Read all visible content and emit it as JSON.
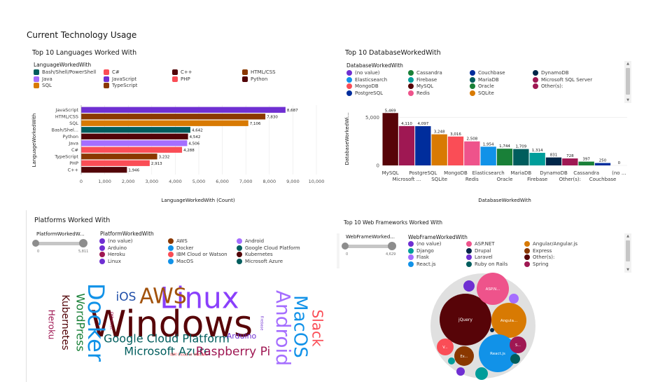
{
  "page": {
    "title": "Current Technology Usage"
  },
  "colors": {
    "purple": "#6f2fd2",
    "red": "#fa4d56",
    "maroon": "#570408",
    "brown": "#8a3800",
    "teal": "#198038",
    "cyan": "#1192e8",
    "navy": "#002d9c",
    "dark_teal": "#005d5d",
    "magenta": "#9f1853",
    "orange": "#d87a03",
    "lilac": "#a56eff",
    "pink": "#ee538b",
    "blackblue": "#012749",
    "brick": "#b28600",
    "deep_orange": "#e8830b",
    "burgundy": "#520408"
  },
  "chart_data": [
    {
      "id": "languages",
      "type": "bar",
      "orientation": "horizontal",
      "title": "Top 10 Languages Worked With",
      "legend_title": "LanguageWorkedWith",
      "xlabel": "LanguageWorkedWith (Count)",
      "ylabel": "LanguageWorkedWith",
      "xlim": [
        0,
        10000
      ],
      "xticks": [
        "0",
        "1,000",
        "2,000",
        "3,000",
        "4,000",
        "5,000",
        "6,000",
        "7,000",
        "8,000",
        "9,000",
        "10,000"
      ],
      "legend_placement": "top",
      "legend": [
        {
          "label": "Bash/Shell/PowerShell",
          "color": "#005d5d"
        },
        {
          "label": "C#",
          "color": "#fa4d56"
        },
        {
          "label": "C++",
          "color": "#520408"
        },
        {
          "label": "HTML/CSS",
          "color": "#8a3800"
        },
        {
          "label": "Java",
          "color": "#a56eff"
        },
        {
          "label": "JavaScript",
          "color": "#6f2fd2"
        },
        {
          "label": "PHP",
          "color": "#fa4d56"
        },
        {
          "label": "Python",
          "color": "#520408"
        },
        {
          "label": "SQL",
          "color": "#d87a03"
        },
        {
          "label": "TypeScript",
          "color": "#8a3800"
        }
      ],
      "categories": [
        "JavaScript",
        "HTML/CSS",
        "SQL",
        "Bash/Shel...",
        "Python",
        "Java",
        "C#",
        "TypeScript",
        "PHP",
        "C++"
      ],
      "values": [
        8687,
        7830,
        7106,
        4642,
        4542,
        4506,
        4288,
        3232,
        2913,
        1946
      ],
      "value_labels": [
        "8,687",
        "7,830",
        "7,106",
        "4,642",
        "4,542",
        "4,506",
        "4,288",
        "3,232",
        "2,913",
        "1,946"
      ],
      "bar_colors": [
        "#6f2fd2",
        "#8a3800",
        "#d87a03",
        "#005d5d",
        "#520408",
        "#a56eff",
        "#fa4d56",
        "#8a3800",
        "#fa4d56",
        "#520408"
      ]
    },
    {
      "id": "databases",
      "type": "bar",
      "orientation": "vertical",
      "title": "Top 10 DatabaseWorkedWith",
      "legend_title": "DatabaseWorkedWith",
      "xlabel": "DatabaseWorkedWith",
      "ylabel": "DatabaseWorkedWi...",
      "ylim": [
        0,
        6000
      ],
      "yticks": [
        "0",
        "5,000"
      ],
      "legend_placement": "top",
      "legend": [
        {
          "label": "(no value)",
          "color": "#6f2fd2"
        },
        {
          "label": "Cassandra",
          "color": "#198038"
        },
        {
          "label": "Couchbase",
          "color": "#002d9c"
        },
        {
          "label": "DynamoDB",
          "color": "#012749"
        },
        {
          "label": "Elasticsearch",
          "color": "#1192e8"
        },
        {
          "label": "Firebase",
          "color": "#009d9a"
        },
        {
          "label": "MariaDB",
          "color": "#005d5d"
        },
        {
          "label": "Microsoft SQL Server",
          "color": "#9f1853"
        },
        {
          "label": "MongoDB",
          "color": "#fa4d56"
        },
        {
          "label": "MySQL",
          "color": "#570408"
        },
        {
          "label": "Oracle",
          "color": "#198038"
        },
        {
          "label": "Other(s):",
          "color": "#9f1853"
        },
        {
          "label": "PostgreSQL",
          "color": "#002d9c"
        },
        {
          "label": "Redis",
          "color": "#ee538b"
        },
        {
          "label": "SQLite",
          "color": "#d87a03"
        }
      ],
      "categories": [
        "MySQL",
        "Microsoft ...",
        "PostgreSQL",
        "SQLite",
        "MongoDB",
        "Redis",
        "Elasticsearch",
        "Oracle",
        "MariaDB",
        "Firebase",
        "DynamoDB",
        "Other(s):",
        "Cassandra",
        "Couchbase",
        "(no ..."
      ],
      "values": [
        5469,
        4110,
        4097,
        3248,
        3016,
        2508,
        1954,
        1744,
        1709,
        1314,
        831,
        728,
        397,
        250,
        0
      ],
      "value_labels": [
        "5,469",
        "4,110",
        "4,097",
        "3,248",
        "3,016",
        "2,508",
        "1,954",
        "1,744",
        "1,709",
        "1,314",
        "831",
        "728",
        "397",
        "250",
        "0"
      ],
      "bar_colors": [
        "#570408",
        "#9f1853",
        "#002d9c",
        "#d87a03",
        "#fa4d56",
        "#ee538b",
        "#1192e8",
        "#198038",
        "#005d5d",
        "#009d9a",
        "#012749",
        "#9f1853",
        "#198038",
        "#002d9c",
        "#6f2fd2"
      ]
    },
    {
      "id": "platforms",
      "type": "wordcloud",
      "title": "Platforms Worked With",
      "legend_title": "PlatformWorkedWith",
      "slider": {
        "label": "PlatformWorkedW...",
        "min": "0",
        "max": "5,811"
      },
      "legend": [
        {
          "label": "(no value)",
          "color": "#6f2fd2"
        },
        {
          "label": "AWS",
          "color": "#8a3800"
        },
        {
          "label": "Android",
          "color": "#a56eff"
        },
        {
          "label": "Arduino",
          "color": "#6f2fd2"
        },
        {
          "label": "Docker",
          "color": "#1192e8"
        },
        {
          "label": "Google Cloud Platform",
          "color": "#005d5d"
        },
        {
          "label": "Heroku",
          "color": "#9f1853"
        },
        {
          "label": "IBM Cloud or Watson",
          "color": "#fa4d56"
        },
        {
          "label": "Kubernetes",
          "color": "#520408"
        },
        {
          "label": "Linux",
          "color": "#6f2fd2"
        },
        {
          "label": "MacOS",
          "color": "#1192e8"
        },
        {
          "label": "Microsoft Azure",
          "color": "#005d5d"
        }
      ],
      "words": [
        {
          "text": "Windows",
          "color": "#570408"
        },
        {
          "text": "Linux",
          "color": "#8a3ffc"
        },
        {
          "text": "AWS",
          "color": "#a2520c"
        },
        {
          "text": "Docker",
          "color": "#1192e8"
        },
        {
          "text": "iOS",
          "color": "#1f4ea8"
        },
        {
          "text": "WordPress",
          "color": "#198038"
        },
        {
          "text": "Kubernetes",
          "color": "#520408"
        },
        {
          "text": "Heroku",
          "color": "#9f1853"
        },
        {
          "text": "Google Cloud Platform",
          "color": "#005d5d"
        },
        {
          "text": "Microsoft Azure",
          "color": "#005d5d"
        },
        {
          "text": "Raspberry Pi",
          "color": "#9f1853"
        },
        {
          "text": "Arduino",
          "color": "#6f2fd2"
        },
        {
          "text": "Android",
          "color": "#a56eff"
        },
        {
          "text": "MacOS",
          "color": "#1192e8"
        },
        {
          "text": "Slack",
          "color": "#fa4d56"
        },
        {
          "text": "IBM Cloud or Watson",
          "color": "#fa4d56"
        },
        {
          "text": "Other(s):",
          "color": "#9f1853"
        },
        {
          "text": "Firebase",
          "color": "#6f2fd2"
        }
      ]
    },
    {
      "id": "webframeworks",
      "type": "bubble",
      "title": "Top 10 Web Frameworks Worked With",
      "legend_title": "WebFrameWorkedWith",
      "slider": {
        "label": "WebFrameWorked...",
        "min": "0",
        "max": "4,629"
      },
      "legend": [
        {
          "label": "(no value)",
          "color": "#6f2fd2"
        },
        {
          "label": "ASP.NET",
          "color": "#ee538b"
        },
        {
          "label": "Angular/Angular.js",
          "color": "#d87a03"
        },
        {
          "label": "Django",
          "color": "#009d9a"
        },
        {
          "label": "Drupal",
          "color": "#012749"
        },
        {
          "label": "Express",
          "color": "#8a3800"
        },
        {
          "label": "Flask",
          "color": "#a56eff"
        },
        {
          "label": "Laravel",
          "color": "#6f2fd2"
        },
        {
          "label": "Other(s):",
          "color": "#570408"
        },
        {
          "label": "React.js",
          "color": "#1192e8"
        },
        {
          "label": "Ruby on Rails",
          "color": "#005d5d"
        },
        {
          "label": "Spring",
          "color": "#9f1853"
        }
      ],
      "bubbles": [
        {
          "label": "jQuery",
          "color": "#570408"
        },
        {
          "label": "ASP.N...",
          "color": "#ee538b"
        },
        {
          "label": "Angula...",
          "color": "#d87a03"
        },
        {
          "label": "React.js",
          "color": "#1192e8"
        },
        {
          "label": "Ex...",
          "color": "#8a3800"
        },
        {
          "label": "V...",
          "color": "#fa4d56"
        },
        {
          "label": "S...",
          "color": "#9f1853"
        },
        {
          "label": "",
          "color": "#6f2fd2"
        },
        {
          "label": "",
          "color": "#a56eff"
        },
        {
          "label": "",
          "color": "#009d9a"
        },
        {
          "label": "",
          "color": "#6f2fd2"
        },
        {
          "label": "",
          "color": "#005d5d"
        },
        {
          "label": "",
          "color": "#009d9a"
        },
        {
          "label": "",
          "color": "#012749"
        }
      ]
    }
  ]
}
